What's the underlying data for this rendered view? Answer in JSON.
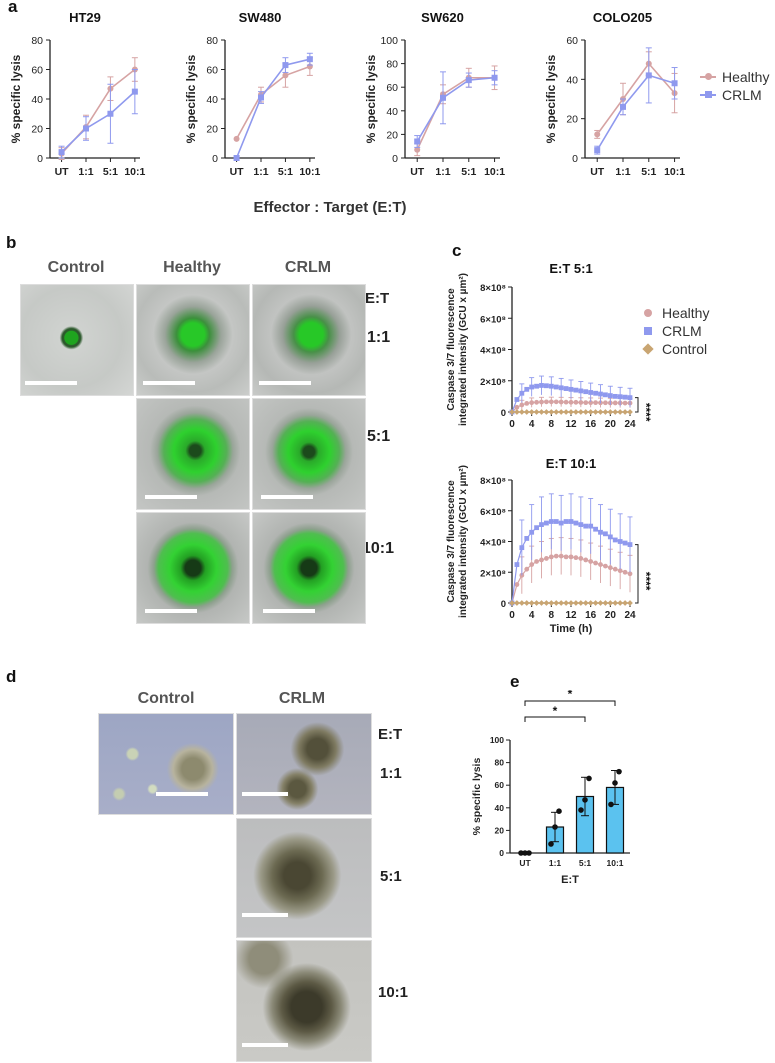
{
  "panels": {
    "a": "a",
    "b": "b",
    "c": "c",
    "d": "d",
    "e": "e"
  },
  "panel_a": {
    "xlabel": "Effector : Target (E:T)",
    "ylabel": "% specific lysis",
    "legend": [
      "Healthy",
      "CRLM"
    ]
  },
  "panel_b": {
    "columns": [
      "Control",
      "Healthy",
      "CRLM"
    ],
    "et_header": "E:T",
    "rows": [
      "1:1",
      "5:1",
      "10:1"
    ]
  },
  "panel_c": {
    "legend": [
      "Healthy",
      "CRLM",
      "Control"
    ],
    "ylabel_line1": "Caspase 3/7 fluorescence",
    "ylabel_line2": "integrated intensity (GCU x µm²)",
    "xlabel": "Time (h)",
    "sig": "****"
  },
  "panel_d": {
    "columns": [
      "Control",
      "CRLM"
    ],
    "et_header": "E:T",
    "rows": [
      "1:1",
      "5:1",
      "10:1"
    ]
  },
  "panel_e": {
    "ylabel": "% specific lysis",
    "xlabel": "E:T",
    "sig": "*"
  },
  "colors": {
    "healthy": "#d6a3a3",
    "crlm": "#8f99ee",
    "control": "#c9a572",
    "bar": "#5bc2ef"
  },
  "chart_data": [
    {
      "type": "line",
      "title": "HT29",
      "x": [
        "UT",
        "1:1",
        "5:1",
        "10:1"
      ],
      "ylim": [
        0,
        80
      ],
      "yticks": [
        "0",
        "20",
        "40",
        "60",
        "80"
      ],
      "series": [
        {
          "name": "Healthy",
          "values": [
            3,
            21,
            47,
            60
          ],
          "err": [
            4,
            8,
            8,
            8
          ]
        },
        {
          "name": "CRLM",
          "values": [
            4,
            20,
            30,
            45
          ],
          "err": [
            4,
            8,
            20,
            15
          ]
        }
      ]
    },
    {
      "type": "line",
      "title": "SW480",
      "x": [
        "UT",
        "1:1",
        "5:1",
        "10:1"
      ],
      "ylim": [
        0,
        80
      ],
      "yticks": [
        "0",
        "20",
        "40",
        "60",
        "80"
      ],
      "series": [
        {
          "name": "Healthy",
          "values": [
            13,
            43,
            56,
            62
          ],
          "err": [
            0,
            5,
            8,
            6
          ]
        },
        {
          "name": "CRLM",
          "values": [
            0,
            41,
            63,
            67
          ],
          "err": [
            0,
            4,
            5,
            4
          ]
        }
      ]
    },
    {
      "type": "line",
      "title": "SW620",
      "x": [
        "UT",
        "1:1",
        "5:1",
        "10:1"
      ],
      "ylim": [
        0,
        100
      ],
      "yticks": [
        "0",
        "20",
        "40",
        "60",
        "80",
        "100"
      ],
      "series": [
        {
          "name": "Healthy",
          "values": [
            7,
            54,
            68,
            68
          ],
          "err": [
            5,
            8,
            8,
            10
          ]
        },
        {
          "name": "CRLM",
          "values": [
            14,
            51,
            66,
            68
          ],
          "err": [
            5,
            22,
            6,
            6
          ]
        }
      ]
    },
    {
      "type": "line",
      "title": "COLO205",
      "x": [
        "UT",
        "1:1",
        "5:1",
        "10:1"
      ],
      "ylim": [
        0,
        60
      ],
      "yticks": [
        "0",
        "20",
        "40",
        "60"
      ],
      "series": [
        {
          "name": "Healthy",
          "values": [
            12,
            30,
            48,
            33
          ],
          "err": [
            2,
            8,
            6,
            10
          ]
        },
        {
          "name": "CRLM",
          "values": [
            4,
            26,
            42,
            38
          ],
          "err": [
            2,
            4,
            14,
            8
          ]
        }
      ]
    },
    {
      "type": "line",
      "title": "E:T 5:1",
      "xlabel": "",
      "xlim": [
        0,
        24
      ],
      "xticks": [
        "0",
        "4",
        "8",
        "12",
        "16",
        "20",
        "24"
      ],
      "ylim": [
        0,
        8
      ],
      "yticks": [
        "0",
        "2×10⁸",
        "4×10⁸",
        "6×10⁸",
        "8×10⁸"
      ],
      "series": [
        {
          "name": "Healthy",
          "x": [
            0,
            1,
            2,
            3,
            4,
            5,
            6,
            7,
            8,
            9,
            10,
            11,
            12,
            13,
            14,
            15,
            16,
            17,
            18,
            19,
            20,
            21,
            22,
            23,
            24
          ],
          "values": [
            0,
            0.3,
            0.45,
            0.55,
            0.6,
            0.62,
            0.64,
            0.65,
            0.65,
            0.65,
            0.64,
            0.63,
            0.62,
            0.62,
            0.61,
            0.6,
            0.6,
            0.6,
            0.59,
            0.59,
            0.58,
            0.58,
            0.58,
            0.57,
            0.57
          ],
          "err": 0.3
        },
        {
          "name": "CRLM",
          "x": [
            0,
            1,
            2,
            3,
            4,
            5,
            6,
            7,
            8,
            9,
            10,
            11,
            12,
            13,
            14,
            15,
            16,
            17,
            18,
            19,
            20,
            21,
            22,
            23,
            24
          ],
          "values": [
            0,
            0.8,
            1.2,
            1.45,
            1.6,
            1.65,
            1.7,
            1.68,
            1.65,
            1.6,
            1.55,
            1.5,
            1.45,
            1.4,
            1.35,
            1.3,
            1.25,
            1.2,
            1.15,
            1.1,
            1.05,
            1.0,
            0.98,
            0.95,
            0.92
          ],
          "err": 0.6
        },
        {
          "name": "Control",
          "x": [
            0,
            1,
            2,
            3,
            4,
            5,
            6,
            7,
            8,
            9,
            10,
            11,
            12,
            13,
            14,
            15,
            16,
            17,
            18,
            19,
            20,
            21,
            22,
            23,
            24
          ],
          "values": [
            0,
            0,
            0,
            0,
            0,
            0,
            0,
            0,
            0,
            0,
            0,
            0,
            0,
            0,
            0,
            0,
            0,
            0,
            0,
            0,
            0,
            0,
            0,
            0,
            0
          ],
          "err": 0
        }
      ]
    },
    {
      "type": "line",
      "title": "E:T 10:1",
      "xlabel": "Time (h)",
      "xlim": [
        0,
        24
      ],
      "xticks": [
        "0",
        "4",
        "8",
        "12",
        "16",
        "20",
        "24"
      ],
      "ylim": [
        0,
        8
      ],
      "yticks": [
        "0",
        "2×10⁸",
        "4×10⁸",
        "6×10⁸",
        "8×10⁸"
      ],
      "series": [
        {
          "name": "Healthy",
          "x": [
            0,
            1,
            2,
            3,
            4,
            5,
            6,
            7,
            8,
            9,
            10,
            11,
            12,
            13,
            14,
            15,
            16,
            17,
            18,
            19,
            20,
            21,
            22,
            23,
            24
          ],
          "values": [
            0,
            1.2,
            1.8,
            2.2,
            2.5,
            2.7,
            2.8,
            2.9,
            3.0,
            3.05,
            3.05,
            3.0,
            3.0,
            2.95,
            2.9,
            2.8,
            2.7,
            2.6,
            2.5,
            2.4,
            2.3,
            2.2,
            2.1,
            2.0,
            1.9
          ],
          "err": 1.2
        },
        {
          "name": "CRLM",
          "x": [
            0,
            1,
            2,
            3,
            4,
            5,
            6,
            7,
            8,
            9,
            10,
            11,
            12,
            13,
            14,
            15,
            16,
            17,
            18,
            19,
            20,
            21,
            22,
            23,
            24
          ],
          "values": [
            0,
            2.5,
            3.6,
            4.2,
            4.6,
            4.9,
            5.1,
            5.2,
            5.3,
            5.3,
            5.2,
            5.3,
            5.3,
            5.2,
            5.1,
            5.0,
            5.0,
            4.8,
            4.6,
            4.5,
            4.3,
            4.1,
            4.0,
            3.9,
            3.8
          ],
          "err": 1.8
        },
        {
          "name": "Control",
          "x": [
            0,
            1,
            2,
            3,
            4,
            5,
            6,
            7,
            8,
            9,
            10,
            11,
            12,
            13,
            14,
            15,
            16,
            17,
            18,
            19,
            20,
            21,
            22,
            23,
            24
          ],
          "values": [
            0,
            0,
            0,
            0,
            0,
            0,
            0,
            0,
            0,
            0,
            0,
            0,
            0,
            0,
            0,
            0,
            0,
            0,
            0,
            0,
            0,
            0,
            0,
            0,
            0
          ],
          "err": 0
        }
      ]
    },
    {
      "type": "bar",
      "title": "",
      "categories": [
        "UT",
        "1:1",
        "5:1",
        "10:1"
      ],
      "values": [
        0,
        23,
        50,
        58
      ],
      "err": [
        0,
        13,
        17,
        15
      ],
      "points": [
        [
          0,
          0,
          0
        ],
        [
          8,
          23,
          37
        ],
        [
          38,
          47,
          66
        ],
        [
          43,
          62,
          72
        ]
      ],
      "ylim": [
        0,
        100
      ],
      "yticks": [
        "0",
        "20",
        "40",
        "60",
        "80",
        "100"
      ]
    }
  ]
}
